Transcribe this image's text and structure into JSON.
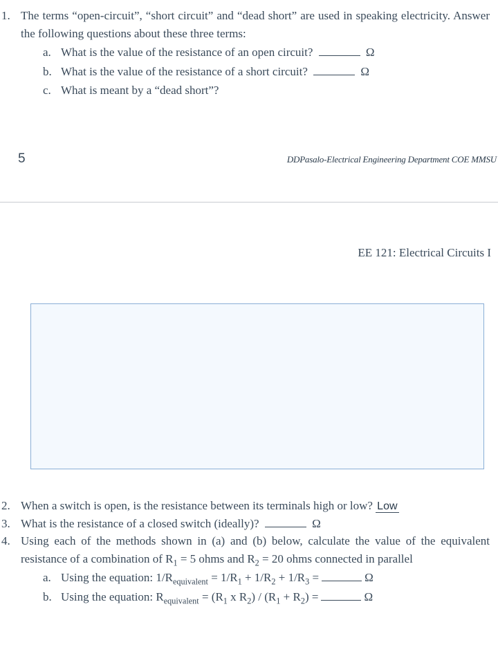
{
  "q1": {
    "num": "1.",
    "text": "The terms “open-circuit”, “short circuit” and “dead short” are used in speaking electricity. Answer the following questions about these three terms:",
    "a_letter": "a.",
    "a_text": "What is the value of the resistance of an open circuit?",
    "a_unit": "Ω",
    "b_letter": "b.",
    "b_text": "What is the value of the resistance of a short circuit?",
    "b_unit": "Ω",
    "c_letter": "c.",
    "c_text": "What is meant by a “dead short”?"
  },
  "footer": {
    "page_num": "5",
    "dept": "DDPasalo-Electrical Engineering Department COE MMSU"
  },
  "course_title": "EE 121: Electrical Circuits I",
  "q2": {
    "num": "2.",
    "text": "When a switch is open, is the resistance between its terminals high or low?",
    "answer": "Low"
  },
  "q3": {
    "num": "3.",
    "text": "What is the resistance of a closed switch (ideally)?",
    "unit": "Ω"
  },
  "q4": {
    "num": "4.",
    "text_pre": "Using each of the methods shown in (a) and (b) below, calculate the value of the equivalent resistance of a combination of R",
    "text_mid1": " = 5 ohms and R",
    "text_mid2": " = 20 ohms connected in parallel",
    "a_letter": "a.",
    "a_pre": "Using the equation: 1/R",
    "a_sub1": "equivalent",
    "a_mid1": " = 1/R",
    "a_mid2": " + 1/R",
    "a_mid3": " + 1/R",
    "a_eq": "  =",
    "a_unit": "Ω",
    "b_letter": "b.",
    "b_pre": "Using the equation: R",
    "b_sub1": "equivalent",
    "b_mid1": " = (R",
    "b_mid2": " x  R",
    "b_mid3": ") / (R",
    "b_mid4": " + R",
    "b_mid5": ")  =",
    "b_unit": "Ω"
  },
  "subs": {
    "one": "1",
    "two": "2",
    "three": "3"
  }
}
